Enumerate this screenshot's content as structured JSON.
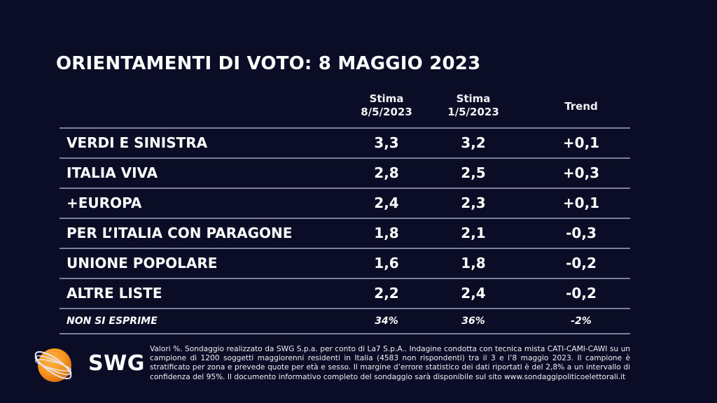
{
  "title": "ORIENTAMENTI DI VOTO: 8 MAGGIO 2023",
  "columns": {
    "col1": {
      "line1": "Stima",
      "line2": "8/5/2023"
    },
    "col2": {
      "line1": "Stima",
      "line2": "1/5/2023"
    },
    "col3": {
      "line1": "Trend"
    }
  },
  "rows": [
    {
      "name": "VERDI E SINISTRA",
      "current": "3,3",
      "previous": "3,2",
      "trend": "+0,1"
    },
    {
      "name": "ITALIA VIVA",
      "current": "2,8",
      "previous": "2,5",
      "trend": "+0,3"
    },
    {
      "name": "+EUROPA",
      "current": "2,4",
      "previous": "2,3",
      "trend": "+0,1"
    },
    {
      "name": "PER L’ITALIA CON PARAGONE",
      "current": "1,8",
      "previous": "2,1",
      "trend": "-0,3"
    },
    {
      "name": "UNIONE POPOLARE",
      "current": "1,6",
      "previous": "1,8",
      "trend": "-0,2"
    },
    {
      "name": "ALTRE LISTE",
      "current": "2,2",
      "previous": "2,4",
      "trend": "-0,2"
    }
  ],
  "abstain": {
    "name": "NON SI ESPRIME",
    "current": "34%",
    "previous": "36%",
    "trend": "-2%"
  },
  "logo": {
    "text": "SWG",
    "icon": "orange-globe-icon"
  },
  "note": "Valori %. Sondaggio realizzato da SWG S.p.a. per conto di La7 S.p.A.. Indagine condotta con tecnica mista CATI-CAMI-CAWI su un campione di 1200 soggetti maggiorenni residenti in Italia (4583 non rispondenti) tra il 3 e l’8 maggio 2023. Il campione è stratificato per zona e prevede quote per età e sesso. Il margine d’errore statistico dei dati riportati è del 2,8% a un intervallo di confidenza del 95%. Il documento informativo completo del sondaggio sarà disponibile sul sito www.sondaggipoliticoelettorali.it",
  "colors": {
    "background": "#0b0d27",
    "rule": "#7d809c",
    "accent": "#f7941d"
  }
}
